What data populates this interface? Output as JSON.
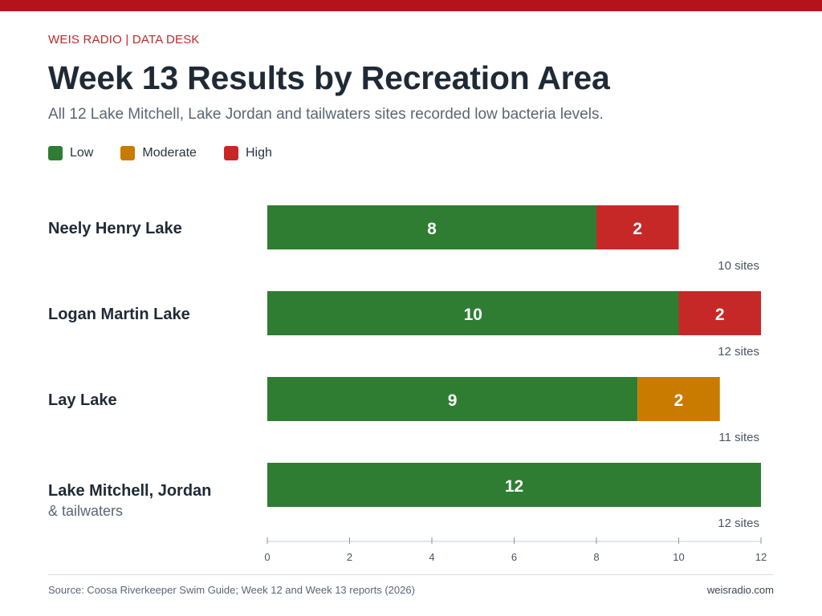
{
  "header": {
    "kicker": "WEIS RADIO | DATA DESK",
    "title": "Week 13 Results by Recreation Area",
    "subtitle": "All 12 Lake Mitchell, Lake Jordan and tailwaters sites recorded low bacteria levels."
  },
  "legend": [
    {
      "label": "Low",
      "color": "#2e7d32"
    },
    {
      "label": "Moderate",
      "color": "#c97b00"
    },
    {
      "label": "High",
      "color": "#c62828"
    }
  ],
  "footer": {
    "source": "Source: Coosa Riverkeeper Swim Guide; Week 12 and Week 13 reports (2026)",
    "site": "weisradio.com"
  },
  "chart_data": {
    "type": "bar",
    "orientation": "horizontal",
    "stacked": true,
    "categories": [
      {
        "name": "Neely Henry Lake",
        "subname": "",
        "total_label": "10 sites"
      },
      {
        "name": "Logan Martin Lake",
        "subname": "",
        "total_label": "12 sites"
      },
      {
        "name": "Lay Lake",
        "subname": "",
        "total_label": "11 sites"
      },
      {
        "name": "Lake Mitchell, Jordan",
        "subname": "& tailwaters",
        "total_label": "12 sites"
      }
    ],
    "series": [
      {
        "name": "Low",
        "color": "#2e7d32",
        "values": [
          8,
          10,
          9,
          12
        ]
      },
      {
        "name": "Moderate",
        "color": "#c97b00",
        "values": [
          0,
          0,
          2,
          0
        ]
      },
      {
        "name": "High",
        "color": "#c62828",
        "values": [
          2,
          2,
          0,
          0
        ]
      }
    ],
    "xlim": [
      0,
      12
    ],
    "xticks": [
      0,
      2,
      4,
      6,
      8,
      10,
      12
    ],
    "grid": false,
    "legend_position": "top-left"
  }
}
